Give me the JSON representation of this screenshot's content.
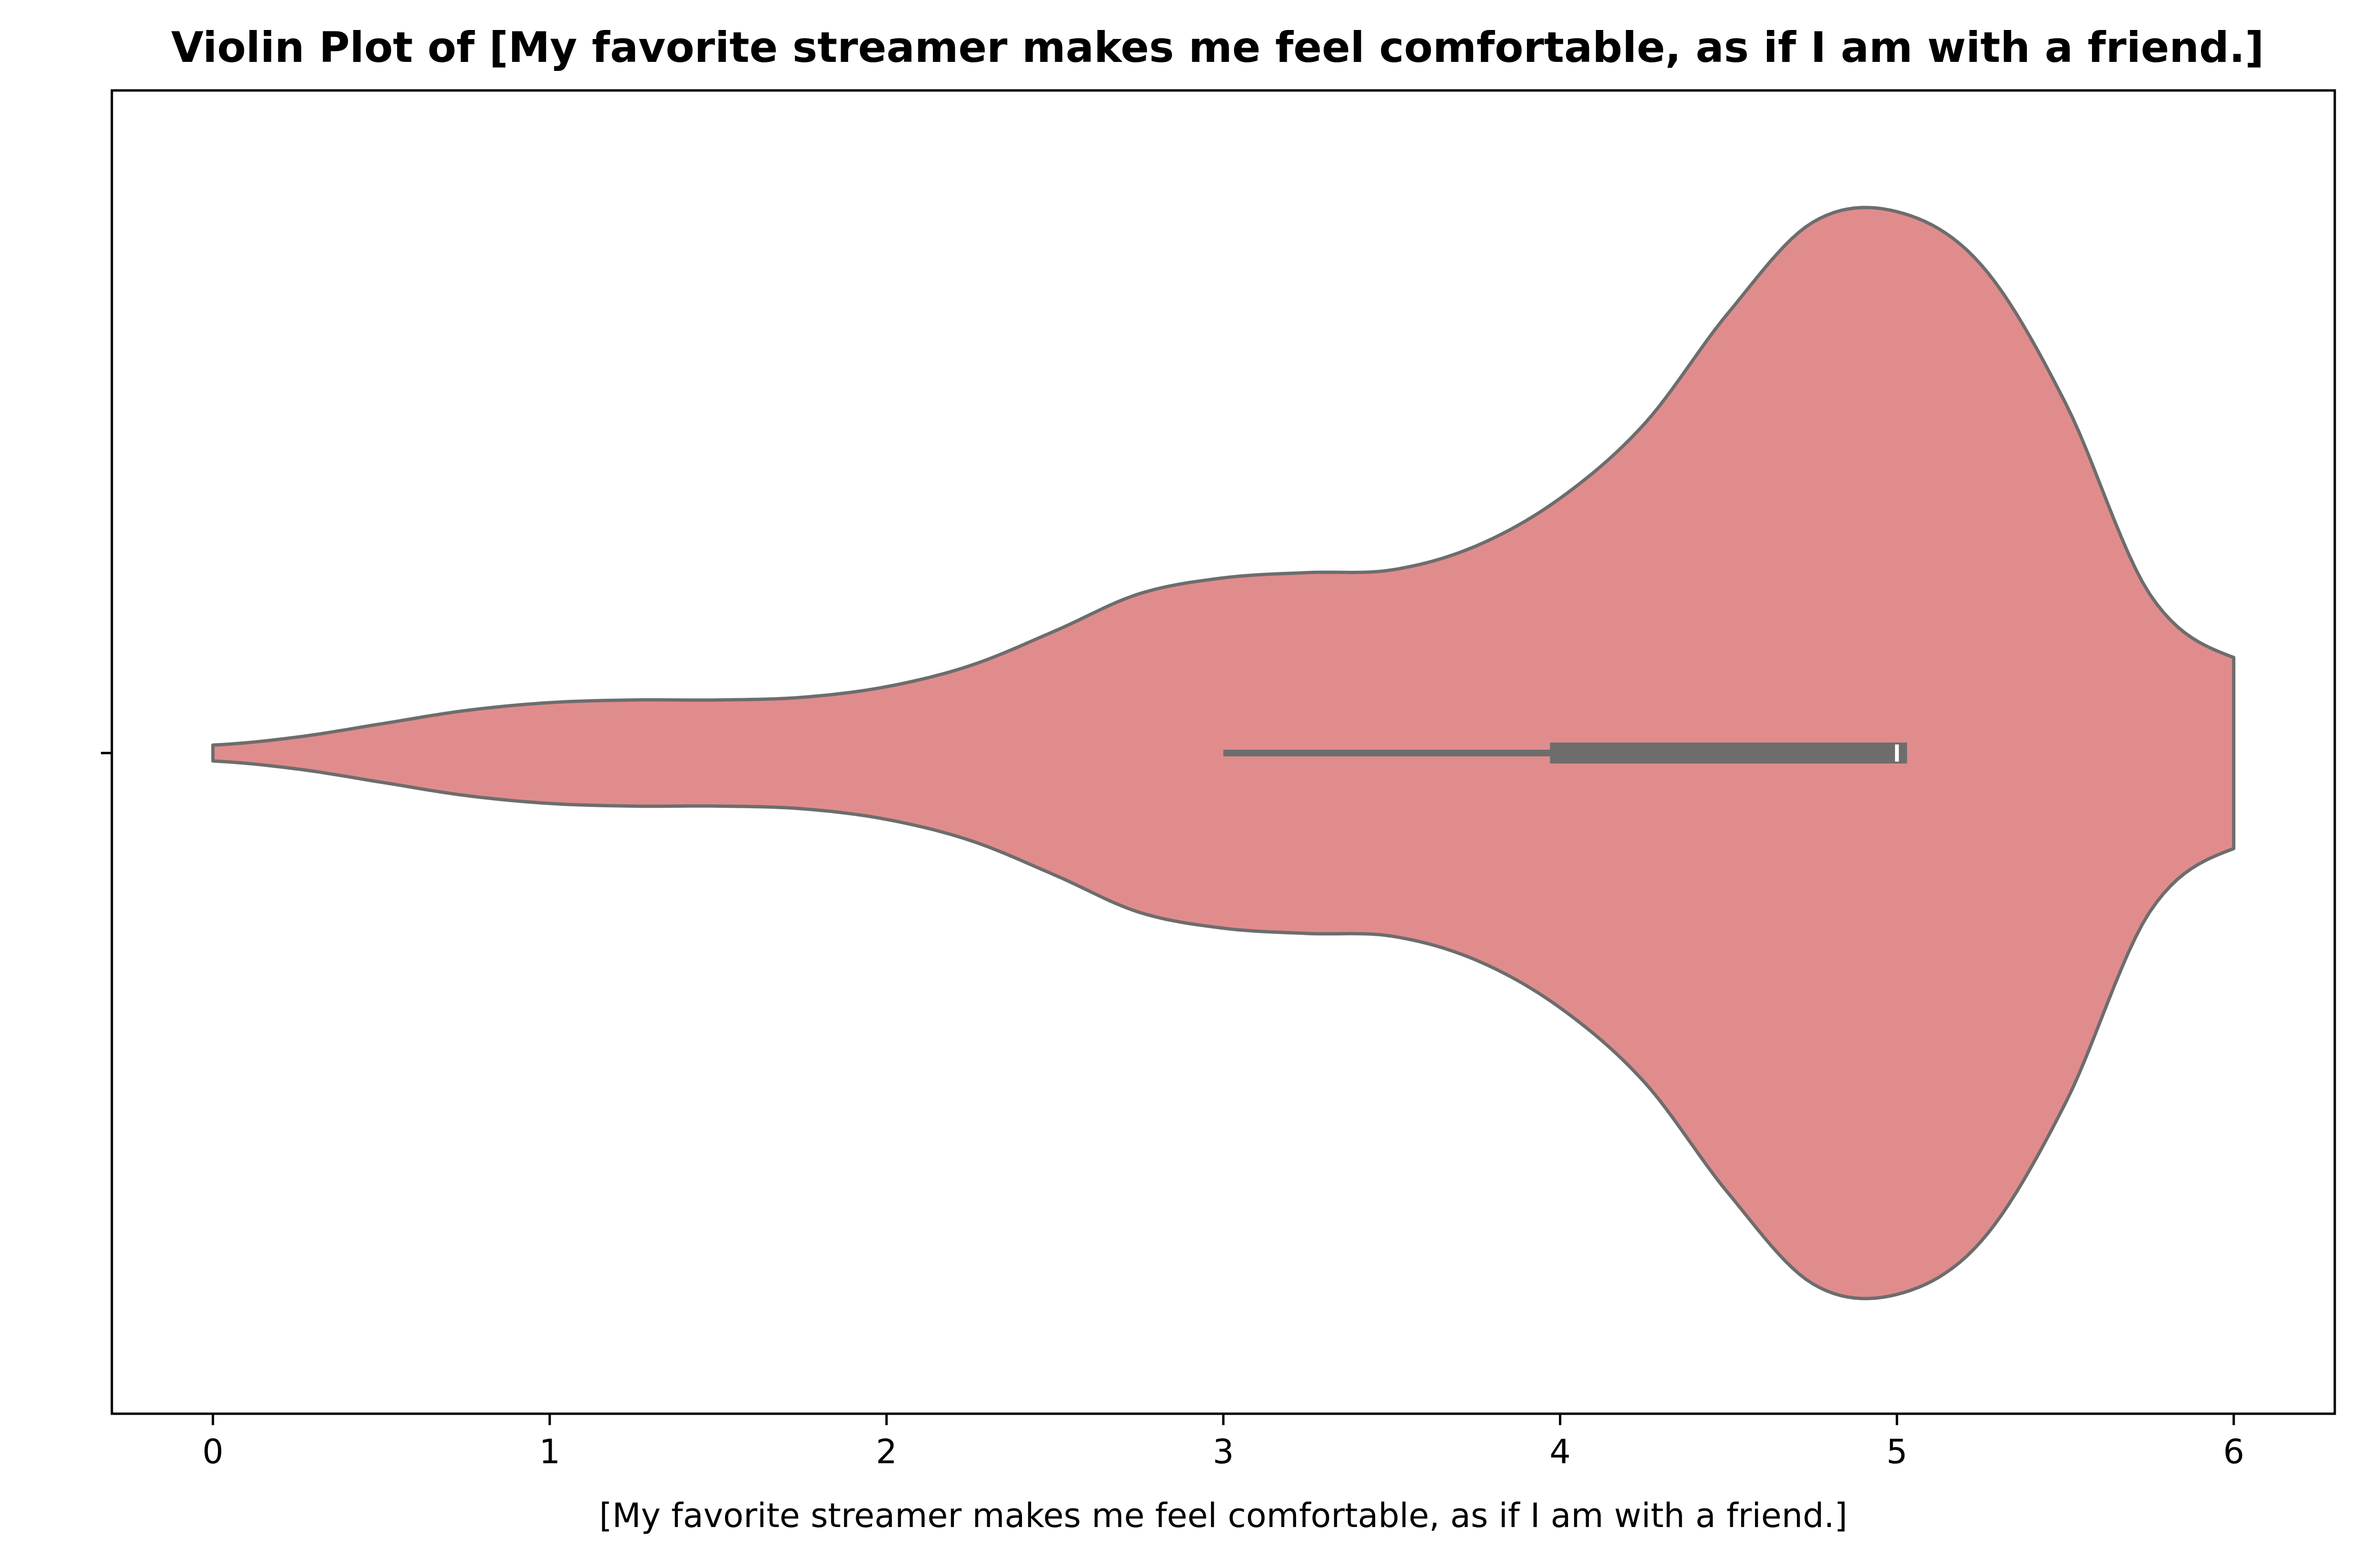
{
  "chart_data": {
    "type": "violin",
    "title": "Violin Plot of [My favorite streamer makes me feel comfortable, as if I am with a friend.]",
    "xlabel": "[My favorite streamer makes me feel comfortable, as if I am with a friend.]",
    "ylabel": "",
    "xlim": [
      -0.3,
      6.3
    ],
    "xticks": [
      0,
      1,
      2,
      3,
      4,
      5,
      6
    ],
    "xtick_labels": [
      "0",
      "1",
      "2",
      "3",
      "4",
      "5",
      "6"
    ],
    "orientation": "horizontal",
    "grid": false,
    "legend": "none",
    "colors": {
      "violin_fill": "#e08c8d",
      "outline": "#6d6d6d",
      "box": "#6d6d6d",
      "median": "#ffffff"
    },
    "density": {
      "x": [
        0.0,
        0.25,
        0.5,
        0.75,
        1.0,
        1.25,
        1.5,
        1.75,
        2.0,
        2.25,
        2.5,
        2.75,
        3.0,
        3.25,
        3.5,
        3.75,
        4.0,
        4.25,
        4.5,
        4.75,
        5.0,
        5.25,
        5.5,
        5.75,
        6.0
      ],
      "half_width": [
        0.015,
        0.03,
        0.055,
        0.08,
        0.095,
        0.1,
        0.1,
        0.105,
        0.125,
        0.165,
        0.23,
        0.3,
        0.33,
        0.34,
        0.345,
        0.39,
        0.48,
        0.62,
        0.83,
        1.0,
        1.02,
        0.92,
        0.66,
        0.3,
        0.18
      ]
    },
    "box": {
      "whisker_low": 3.0,
      "q1": 3.97,
      "median": 5.0,
      "q3": 5.03,
      "whisker_high": 5.03
    }
  }
}
